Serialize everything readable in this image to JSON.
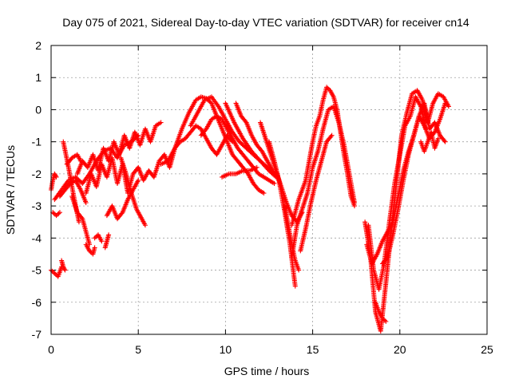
{
  "chart_data": {
    "type": "scatter",
    "title": "Day 075 of 2021, Sidereal Day-to-day VTEC variation (SDTVAR) for receiver cn14",
    "xlabel": "GPS time / hours",
    "ylabel": "SDTVAR / TECUs",
    "xlim": [
      0,
      25
    ],
    "ylim": [
      -7,
      2
    ],
    "xticks": [
      0,
      5,
      10,
      15,
      20,
      25
    ],
    "yticks": [
      -7,
      -6,
      -5,
      -4,
      -3,
      -2,
      -1,
      0,
      1,
      2
    ],
    "grid": true,
    "marker": "+",
    "color": "#ff0000",
    "series": [
      {
        "name": "s1",
        "x": [
          0.0,
          0.1,
          0.2,
          0.3
        ],
        "y": [
          -2.5,
          -2.2,
          -2.0,
          -2.1
        ]
      },
      {
        "name": "s2",
        "x": [
          0.0,
          0.2,
          0.4,
          0.6
        ],
        "y": [
          -5.0,
          -5.1,
          -5.2,
          -4.9
        ]
      },
      {
        "name": "s3",
        "x": [
          0.6,
          0.7,
          0.8
        ],
        "y": [
          -4.7,
          -4.9,
          -5.0
        ]
      },
      {
        "name": "s4",
        "x": [
          0.1,
          0.3,
          0.5
        ],
        "y": [
          -3.2,
          -3.3,
          -3.2
        ]
      },
      {
        "name": "s5",
        "x": [
          0.2,
          0.6,
          1.0,
          1.4,
          1.8,
          2.2,
          2.6,
          3.0,
          3.4,
          3.8,
          4.2,
          4.6,
          5.0
        ],
        "y": [
          -2.8,
          -2.5,
          -2.2,
          -2.1,
          -2.3,
          -2.0,
          -1.6,
          -1.3,
          -1.2,
          -1.5,
          -1.1,
          -1.0,
          -0.8
        ]
      },
      {
        "name": "s6",
        "x": [
          0.5,
          0.8,
          1.1,
          1.4,
          1.7,
          2.0
        ],
        "y": [
          -2.7,
          -2.5,
          -2.3,
          -2.2,
          -2.5,
          -2.9
        ]
      },
      {
        "name": "s7",
        "x": [
          0.7,
          1.0,
          1.3,
          1.6
        ],
        "y": [
          -1.0,
          -1.8,
          -2.7,
          -3.5
        ]
      },
      {
        "name": "s8",
        "x": [
          0.9,
          1.2,
          1.5,
          1.7
        ],
        "y": [
          -1.7,
          -1.5,
          -1.4,
          -1.6
        ]
      },
      {
        "name": "s9",
        "x": [
          1.2,
          1.5,
          1.8,
          2.0,
          2.2
        ],
        "y": [
          -2.7,
          -3.2,
          -3.4,
          -3.8,
          -4.2
        ]
      },
      {
        "name": "s10",
        "x": [
          2.0,
          2.2,
          2.4,
          2.5
        ],
        "y": [
          -4.2,
          -4.4,
          -4.5,
          -4.3
        ]
      },
      {
        "name": "s11",
        "x": [
          2.5,
          2.7,
          2.9
        ],
        "y": [
          -4.0,
          -3.9,
          -4.1
        ]
      },
      {
        "name": "s12",
        "x": [
          3.1,
          3.2,
          3.3
        ],
        "y": [
          -4.3,
          -4.1,
          -3.9
        ]
      },
      {
        "name": "s13",
        "x": [
          1.5,
          1.8,
          2.1,
          2.4,
          2.7,
          3.0,
          3.3,
          3.6,
          3.9,
          4.2,
          4.5,
          4.8,
          5.1,
          5.4,
          5.7,
          6.0,
          6.3
        ],
        "y": [
          -2.0,
          -1.6,
          -1.8,
          -1.4,
          -1.9,
          -1.2,
          -1.6,
          -1.0,
          -1.4,
          -0.8,
          -1.2,
          -0.7,
          -1.1,
          -0.6,
          -1.0,
          -0.5,
          -0.4
        ]
      },
      {
        "name": "s14",
        "x": [
          2.0,
          2.3,
          2.6,
          2.9,
          3.2,
          3.5,
          3.8,
          4.1,
          4.4,
          4.7,
          5.0,
          5.3,
          5.6,
          5.9,
          6.2,
          6.5,
          6.8,
          7.1,
          7.4,
          7.7,
          8.0,
          8.3,
          8.6,
          8.9,
          9.2,
          9.5,
          9.8,
          10.1,
          10.4
        ],
        "y": [
          -2.6,
          -2.0,
          -2.4,
          -1.7,
          -2.1,
          -1.5,
          -2.3,
          -1.7,
          -2.6,
          -2.0,
          -1.8,
          -2.2,
          -1.9,
          -2.1,
          -1.6,
          -1.4,
          -1.8,
          -1.2,
          -1.0,
          -0.9,
          -0.7,
          -0.5,
          -0.6,
          -0.9,
          -1.2,
          -1.4,
          -1.1,
          -0.8,
          -1.0
        ]
      },
      {
        "name": "s15",
        "x": [
          3.2,
          3.5,
          3.8,
          4.1,
          4.4,
          4.7,
          5.0
        ],
        "y": [
          -3.3,
          -3.0,
          -3.4,
          -3.2,
          -2.8,
          -2.5,
          -2.2
        ]
      },
      {
        "name": "s16",
        "x": [
          4.0,
          4.3,
          4.6,
          4.9,
          5.2,
          5.4
        ],
        "y": [
          -1.5,
          -2.0,
          -2.6,
          -3.1,
          -3.4,
          -3.6
        ]
      },
      {
        "name": "s17",
        "x": [
          6.3,
          6.7,
          7.1,
          7.5,
          7.9,
          8.3,
          8.6,
          8.9,
          9.2,
          9.5,
          9.8,
          10.1,
          10.4,
          10.7,
          11.0,
          11.3,
          11.6,
          11.9,
          12.2
        ],
        "y": [
          -1.7,
          -1.6,
          -1.2,
          -0.6,
          -0.1,
          0.3,
          0.4,
          0.35,
          0.2,
          -0.2,
          -0.6,
          -1.0,
          -1.4,
          -1.6,
          -1.8,
          -2.0,
          -2.3,
          -2.5,
          -2.6
        ]
      },
      {
        "name": "s18",
        "x": [
          8.0,
          8.4,
          8.8,
          9.2,
          9.6,
          10.0,
          10.4,
          10.8,
          11.2,
          11.6,
          12.0,
          12.4,
          12.8
        ],
        "y": [
          -0.5,
          -0.1,
          0.3,
          0.4,
          0.1,
          -0.3,
          -0.7,
          -1.0,
          -1.2,
          -1.4,
          -1.6,
          -1.8,
          -2.0
        ]
      },
      {
        "name": "s19",
        "x": [
          10.0,
          10.5,
          11.0,
          11.5,
          12.0,
          12.5,
          12.9
        ],
        "y": [
          0.2,
          -0.4,
          -0.9,
          -1.3,
          -1.6,
          -1.9,
          -2.1
        ]
      },
      {
        "name": "s20",
        "x": [
          8.6,
          8.9,
          9.2,
          9.5,
          9.8,
          10.1,
          10.4,
          10.7,
          11.0,
          11.3,
          11.6,
          11.9,
          12.2,
          12.5,
          12.8
        ],
        "y": [
          -0.8,
          -0.6,
          -0.3,
          -0.2,
          -0.3,
          -0.6,
          -0.9,
          -1.2,
          -1.4,
          -1.6,
          -1.8,
          -2.0,
          -2.1,
          -2.2,
          -2.3
        ]
      },
      {
        "name": "s21",
        "x": [
          9.8,
          10.2,
          10.6,
          11.0,
          11.4,
          11.8
        ],
        "y": [
          -2.1,
          -2.0,
          -2.0,
          -1.9,
          -1.9,
          -1.8
        ]
      },
      {
        "name": "s22",
        "x": [
          10.6,
          10.9,
          11.2,
          11.5,
          11.8,
          12.1,
          12.4,
          12.7,
          13.0
        ],
        "y": [
          0.2,
          -0.2,
          -0.4,
          -0.8,
          -1.1,
          -1.3,
          -1.6,
          -1.9,
          -2.1
        ]
      },
      {
        "name": "s23",
        "x": [
          12.0,
          12.3,
          12.6,
          12.9,
          13.2,
          13.5,
          13.8,
          14.1,
          14.4
        ],
        "y": [
          -0.4,
          -0.9,
          -1.4,
          -1.9,
          -2.4,
          -2.9,
          -3.3,
          -3.5,
          -3.2
        ]
      },
      {
        "name": "s24",
        "x": [
          12.5,
          12.8,
          13.1,
          13.4,
          13.7,
          14.0
        ],
        "y": [
          -1.0,
          -1.6,
          -2.3,
          -3.2,
          -4.2,
          -5.5
        ]
      },
      {
        "name": "s25",
        "x": [
          13.4,
          13.6,
          13.8,
          14.0,
          14.2
        ],
        "y": [
          -3.0,
          -3.6,
          -4.2,
          -4.7,
          -5.0
        ]
      },
      {
        "name": "s26",
        "x": [
          13.8,
          14.0,
          14.2,
          14.4,
          14.6,
          14.8,
          15.0,
          15.2,
          15.4,
          15.6,
          15.8,
          16.0,
          16.2,
          16.4,
          16.6,
          16.8,
          17.0,
          17.2,
          17.4
        ],
        "y": [
          -3.6,
          -3.2,
          -2.8,
          -2.5,
          -2.2,
          -1.6,
          -1.0,
          -0.5,
          -0.2,
          0.3,
          0.7,
          0.6,
          0.4,
          0.0,
          -0.7,
          -1.4,
          -2.0,
          -2.7,
          -3.0
        ]
      },
      {
        "name": "s27",
        "x": [
          13.8,
          14.1,
          14.4,
          14.7,
          15.0,
          15.3,
          15.6,
          15.9,
          16.2,
          16.5,
          16.8,
          17.1,
          17.4
        ],
        "y": [
          -4.6,
          -3.6,
          -3.1,
          -2.6,
          -1.8,
          -1.3,
          -0.6,
          0.0,
          0.1,
          -0.4,
          -1.1,
          -2.0,
          -2.9
        ]
      },
      {
        "name": "s28",
        "x": [
          14.3,
          14.6,
          14.9,
          15.2,
          15.5,
          15.8,
          16.1
        ],
        "y": [
          -4.4,
          -3.7,
          -2.9,
          -2.2,
          -1.6,
          -1.0,
          -0.8
        ]
      },
      {
        "name": "s29",
        "x": [
          18.0,
          18.3,
          18.6,
          18.9,
          19.2,
          19.5,
          19.8,
          20.1,
          20.4,
          20.7,
          21.0,
          21.3,
          21.6,
          21.9,
          22.2,
          22.5,
          22.8
        ],
        "y": [
          -3.5,
          -4.5,
          -6.3,
          -6.9,
          -5.4,
          -3.8,
          -2.3,
          -0.8,
          -0.1,
          0.5,
          0.6,
          0.3,
          -0.4,
          0.2,
          0.5,
          0.4,
          0.1
        ]
      },
      {
        "name": "s30",
        "x": [
          18.2,
          18.5,
          18.8,
          19.1,
          19.4,
          19.7,
          20.0,
          20.3,
          20.6,
          20.9,
          21.2,
          21.5
        ],
        "y": [
          -3.6,
          -5.0,
          -5.6,
          -4.8,
          -3.5,
          -2.3,
          -1.4,
          -0.5,
          -0.2,
          0.4,
          0.1,
          -0.6
        ]
      },
      {
        "name": "s31",
        "x": [
          18.1,
          18.4,
          18.7,
          19.0,
          19.3,
          19.6,
          19.9,
          20.2,
          20.5,
          20.8,
          21.1,
          21.4,
          21.7,
          22.0,
          22.3,
          22.6
        ],
        "y": [
          -4.2,
          -4.8,
          -4.5,
          -4.1,
          -3.8,
          -3.5,
          -2.7,
          -1.9,
          -1.3,
          -0.8,
          -0.2,
          -0.5,
          -0.9,
          -0.7,
          -0.3,
          0.2
        ]
      },
      {
        "name": "s32",
        "x": [
          18.6,
          18.8,
          19.0,
          19.2
        ],
        "y": [
          -6.0,
          -6.3,
          -6.5,
          -6.6
        ]
      },
      {
        "name": "s33",
        "x": [
          19.0,
          19.3,
          19.6,
          19.9,
          20.2,
          20.5,
          20.8,
          21.1,
          21.4,
          21.7,
          22.0,
          22.3,
          22.6
        ],
        "y": [
          -4.8,
          -4.6,
          -3.9,
          -3.1,
          -2.2,
          -1.4,
          -0.8,
          -0.2,
          0.2,
          -0.6,
          -0.4,
          -0.8,
          -1.0
        ]
      },
      {
        "name": "s34",
        "x": [
          21.2,
          21.4,
          21.6,
          21.8,
          22.0,
          22.2
        ],
        "y": [
          -1.0,
          -1.3,
          -1.0,
          -0.7,
          -1.2,
          -0.9
        ]
      }
    ]
  }
}
